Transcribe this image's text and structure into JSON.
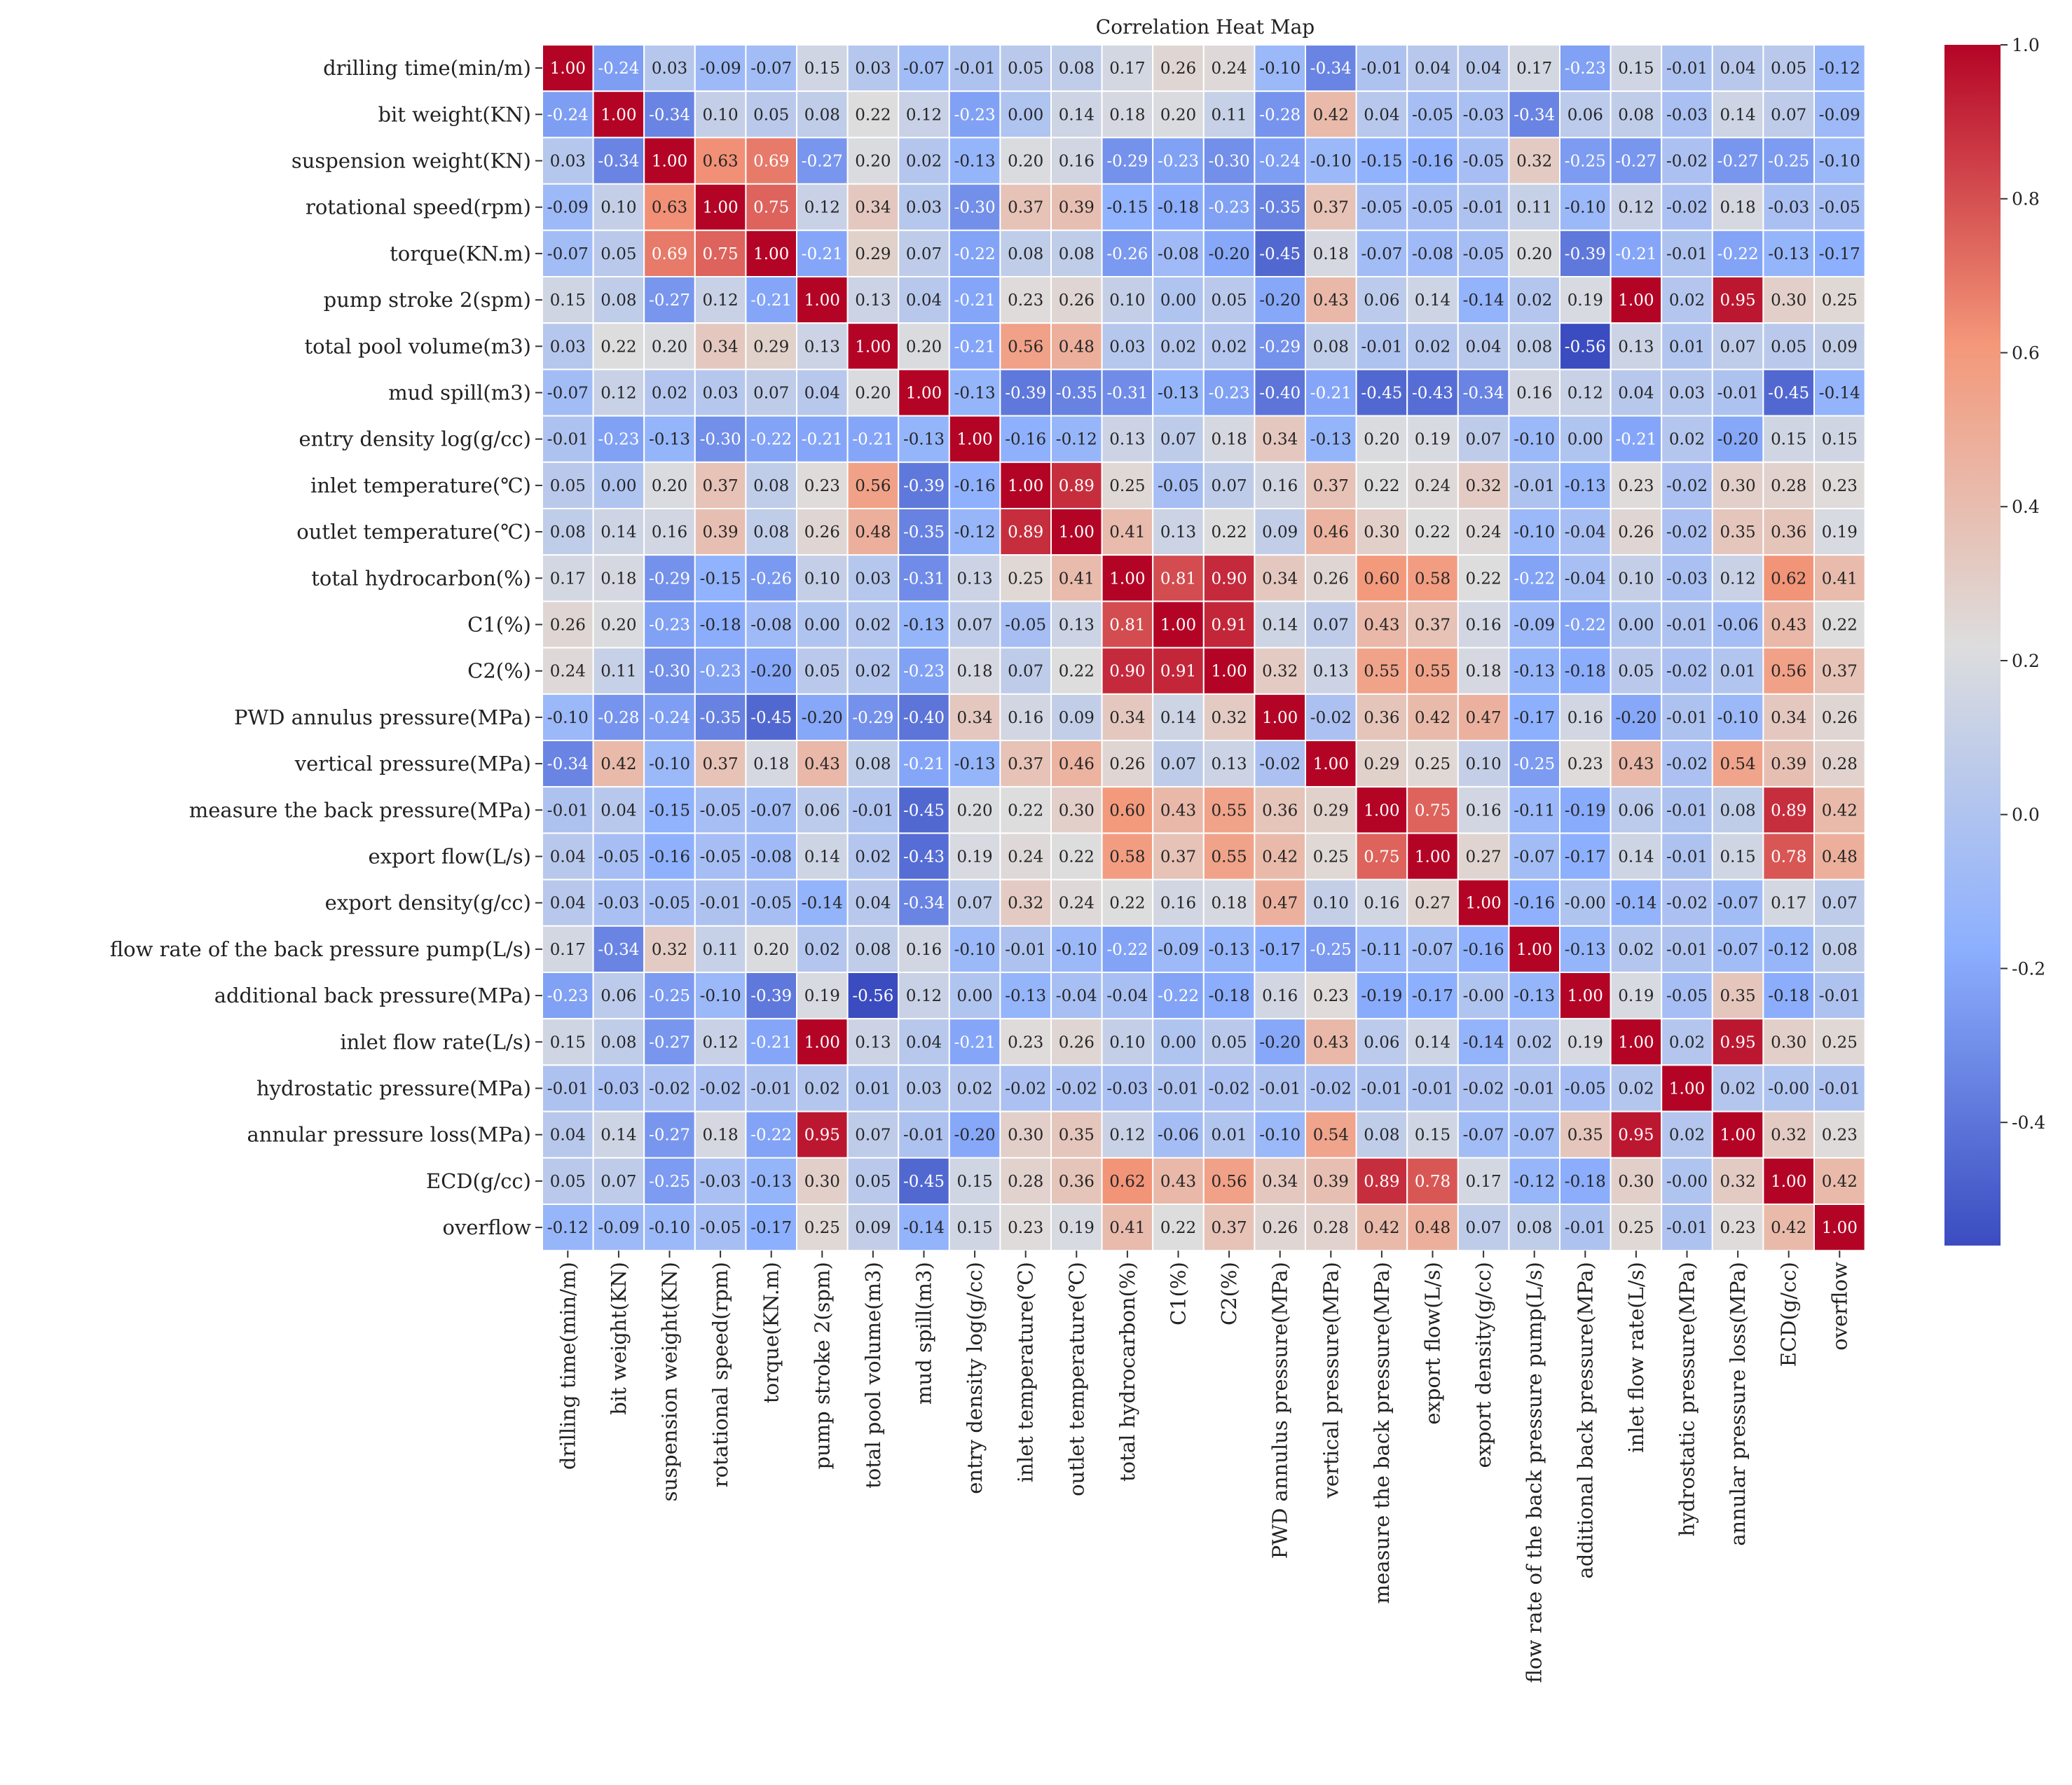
{
  "chart_data": {
    "type": "heatmap",
    "title": "Correlation Heat Map",
    "xlabel": "",
    "ylabel": "",
    "labels": [
      "drilling time(min/m)",
      "bit weight(KN)",
      "suspension weight(KN)",
      "rotational speed(rpm)",
      "torque(KN.m)",
      "pump stroke 2(spm)",
      "total pool volume(m3)",
      "mud spill(m3)",
      "entry density log(g/cc)",
      "inlet temperature(℃)",
      "outlet temperature(℃)",
      "total hydrocarbon(%)",
      "C1(%)",
      "C2(%)",
      "PWD annulus pressure(MPa)",
      "vertical pressure(MPa)",
      "measure the back pressure(MPa)",
      "export flow(L/s)",
      "export density(g/cc)",
      "flow rate of the back pressure pump(L/s)",
      "additional back pressure(MPa)",
      "inlet flow rate(L/s)",
      "hydrostatic pressure(MPa)",
      "annular pressure loss(MPa)",
      "ECD(g/cc)",
      "overflow"
    ],
    "matrix": [
      [
        "1.00",
        "-0.24",
        "0.03",
        "-0.09",
        "-0.07",
        "0.15",
        "0.03",
        "-0.07",
        "-0.01",
        "0.05",
        "0.08",
        "0.17",
        "0.26",
        "0.24",
        "-0.10",
        "-0.34",
        "-0.01",
        "0.04",
        "0.04",
        "0.17",
        "-0.23",
        "0.15",
        "-0.01",
        "0.04",
        "0.05",
        "-0.12"
      ],
      [
        "-0.24",
        "1.00",
        "-0.34",
        "0.10",
        "0.05",
        "0.08",
        "0.22",
        "0.12",
        "-0.23",
        "0.00",
        "0.14",
        "0.18",
        "0.20",
        "0.11",
        "-0.28",
        "0.42",
        "0.04",
        "-0.05",
        "-0.03",
        "-0.34",
        "0.06",
        "0.08",
        "-0.03",
        "0.14",
        "0.07",
        "-0.09"
      ],
      [
        "0.03",
        "-0.34",
        "1.00",
        "0.63",
        "0.69",
        "-0.27",
        "0.20",
        "0.02",
        "-0.13",
        "0.20",
        "0.16",
        "-0.29",
        "-0.23",
        "-0.30",
        "-0.24",
        "-0.10",
        "-0.15",
        "-0.16",
        "-0.05",
        "0.32",
        "-0.25",
        "-0.27",
        "-0.02",
        "-0.27",
        "-0.25",
        "-0.10"
      ],
      [
        "-0.09",
        "0.10",
        "0.63",
        "1.00",
        "0.75",
        "0.12",
        "0.34",
        "0.03",
        "-0.30",
        "0.37",
        "0.39",
        "-0.15",
        "-0.18",
        "-0.23",
        "-0.35",
        "0.37",
        "-0.05",
        "-0.05",
        "-0.01",
        "0.11",
        "-0.10",
        "0.12",
        "-0.02",
        "0.18",
        "-0.03",
        "-0.05"
      ],
      [
        "-0.07",
        "0.05",
        "0.69",
        "0.75",
        "1.00",
        "-0.21",
        "0.29",
        "0.07",
        "-0.22",
        "0.08",
        "0.08",
        "-0.26",
        "-0.08",
        "-0.20",
        "-0.45",
        "0.18",
        "-0.07",
        "-0.08",
        "-0.05",
        "0.20",
        "-0.39",
        "-0.21",
        "-0.01",
        "-0.22",
        "-0.13",
        "-0.17"
      ],
      [
        "0.15",
        "0.08",
        "-0.27",
        "0.12",
        "-0.21",
        "1.00",
        "0.13",
        "0.04",
        "-0.21",
        "0.23",
        "0.26",
        "0.10",
        "0.00",
        "0.05",
        "-0.20",
        "0.43",
        "0.06",
        "0.14",
        "-0.14",
        "0.02",
        "0.19",
        "1.00",
        "0.02",
        "0.95",
        "0.30",
        "0.25"
      ],
      [
        "0.03",
        "0.22",
        "0.20",
        "0.34",
        "0.29",
        "0.13",
        "1.00",
        "0.20",
        "-0.21",
        "0.56",
        "0.48",
        "0.03",
        "0.02",
        "0.02",
        "-0.29",
        "0.08",
        "-0.01",
        "0.02",
        "0.04",
        "0.08",
        "-0.56",
        "0.13",
        "0.01",
        "0.07",
        "0.05",
        "0.09"
      ],
      [
        "-0.07",
        "0.12",
        "0.02",
        "0.03",
        "0.07",
        "0.04",
        "0.20",
        "1.00",
        "-0.13",
        "-0.39",
        "-0.35",
        "-0.31",
        "-0.13",
        "-0.23",
        "-0.40",
        "-0.21",
        "-0.45",
        "-0.43",
        "-0.34",
        "0.16",
        "0.12",
        "0.04",
        "0.03",
        "-0.01",
        "-0.45",
        "-0.14"
      ],
      [
        "-0.01",
        "-0.23",
        "-0.13",
        "-0.30",
        "-0.22",
        "-0.21",
        "-0.21",
        "-0.13",
        "1.00",
        "-0.16",
        "-0.12",
        "0.13",
        "0.07",
        "0.18",
        "0.34",
        "-0.13",
        "0.20",
        "0.19",
        "0.07",
        "-0.10",
        "0.00",
        "-0.21",
        "0.02",
        "-0.20",
        "0.15",
        "0.15"
      ],
      [
        "0.05",
        "0.00",
        "0.20",
        "0.37",
        "0.08",
        "0.23",
        "0.56",
        "-0.39",
        "-0.16",
        "1.00",
        "0.89",
        "0.25",
        "-0.05",
        "0.07",
        "0.16",
        "0.37",
        "0.22",
        "0.24",
        "0.32",
        "-0.01",
        "-0.13",
        "0.23",
        "-0.02",
        "0.30",
        "0.28",
        "0.23"
      ],
      [
        "0.08",
        "0.14",
        "0.16",
        "0.39",
        "0.08",
        "0.26",
        "0.48",
        "-0.35",
        "-0.12",
        "0.89",
        "1.00",
        "0.41",
        "0.13",
        "0.22",
        "0.09",
        "0.46",
        "0.30",
        "0.22",
        "0.24",
        "-0.10",
        "-0.04",
        "0.26",
        "-0.02",
        "0.35",
        "0.36",
        "0.19"
      ],
      [
        "0.17",
        "0.18",
        "-0.29",
        "-0.15",
        "-0.26",
        "0.10",
        "0.03",
        "-0.31",
        "0.13",
        "0.25",
        "0.41",
        "1.00",
        "0.81",
        "0.90",
        "0.34",
        "0.26",
        "0.60",
        "0.58",
        "0.22",
        "-0.22",
        "-0.04",
        "0.10",
        "-0.03",
        "0.12",
        "0.62",
        "0.41"
      ],
      [
        "0.26",
        "0.20",
        "-0.23",
        "-0.18",
        "-0.08",
        "0.00",
        "0.02",
        "-0.13",
        "0.07",
        "-0.05",
        "0.13",
        "0.81",
        "1.00",
        "0.91",
        "0.14",
        "0.07",
        "0.43",
        "0.37",
        "0.16",
        "-0.09",
        "-0.22",
        "0.00",
        "-0.01",
        "-0.06",
        "0.43",
        "0.22"
      ],
      [
        "0.24",
        "0.11",
        "-0.30",
        "-0.23",
        "-0.20",
        "0.05",
        "0.02",
        "-0.23",
        "0.18",
        "0.07",
        "0.22",
        "0.90",
        "0.91",
        "1.00",
        "0.32",
        "0.13",
        "0.55",
        "0.55",
        "0.18",
        "-0.13",
        "-0.18",
        "0.05",
        "-0.02",
        "0.01",
        "0.56",
        "0.37"
      ],
      [
        "-0.10",
        "-0.28",
        "-0.24",
        "-0.35",
        "-0.45",
        "-0.20",
        "-0.29",
        "-0.40",
        "0.34",
        "0.16",
        "0.09",
        "0.34",
        "0.14",
        "0.32",
        "1.00",
        "-0.02",
        "0.36",
        "0.42",
        "0.47",
        "-0.17",
        "0.16",
        "-0.20",
        "-0.01",
        "-0.10",
        "0.34",
        "0.26"
      ],
      [
        "-0.34",
        "0.42",
        "-0.10",
        "0.37",
        "0.18",
        "0.43",
        "0.08",
        "-0.21",
        "-0.13",
        "0.37",
        "0.46",
        "0.26",
        "0.07",
        "0.13",
        "-0.02",
        "1.00",
        "0.29",
        "0.25",
        "0.10",
        "-0.25",
        "0.23",
        "0.43",
        "-0.02",
        "0.54",
        "0.39",
        "0.28"
      ],
      [
        "-0.01",
        "0.04",
        "-0.15",
        "-0.05",
        "-0.07",
        "0.06",
        "-0.01",
        "-0.45",
        "0.20",
        "0.22",
        "0.30",
        "0.60",
        "0.43",
        "0.55",
        "0.36",
        "0.29",
        "1.00",
        "0.75",
        "0.16",
        "-0.11",
        "-0.19",
        "0.06",
        "-0.01",
        "0.08",
        "0.89",
        "0.42"
      ],
      [
        "0.04",
        "-0.05",
        "-0.16",
        "-0.05",
        "-0.08",
        "0.14",
        "0.02",
        "-0.43",
        "0.19",
        "0.24",
        "0.22",
        "0.58",
        "0.37",
        "0.55",
        "0.42",
        "0.25",
        "0.75",
        "1.00",
        "0.27",
        "-0.07",
        "-0.17",
        "0.14",
        "-0.01",
        "0.15",
        "0.78",
        "0.48"
      ],
      [
        "0.04",
        "-0.03",
        "-0.05",
        "-0.01",
        "-0.05",
        "-0.14",
        "0.04",
        "-0.34",
        "0.07",
        "0.32",
        "0.24",
        "0.22",
        "0.16",
        "0.18",
        "0.47",
        "0.10",
        "0.16",
        "0.27",
        "1.00",
        "-0.16",
        "-0.00",
        "-0.14",
        "-0.02",
        "-0.07",
        "0.17",
        "0.07"
      ],
      [
        "0.17",
        "-0.34",
        "0.32",
        "0.11",
        "0.20",
        "0.02",
        "0.08",
        "0.16",
        "-0.10",
        "-0.01",
        "-0.10",
        "-0.22",
        "-0.09",
        "-0.13",
        "-0.17",
        "-0.25",
        "-0.11",
        "-0.07",
        "-0.16",
        "1.00",
        "-0.13",
        "0.02",
        "-0.01",
        "-0.07",
        "-0.12",
        "0.08"
      ],
      [
        "-0.23",
        "0.06",
        "-0.25",
        "-0.10",
        "-0.39",
        "0.19",
        "-0.56",
        "0.12",
        "0.00",
        "-0.13",
        "-0.04",
        "-0.04",
        "-0.22",
        "-0.18",
        "0.16",
        "0.23",
        "-0.19",
        "-0.17",
        "-0.00",
        "-0.13",
        "1.00",
        "0.19",
        "-0.05",
        "0.35",
        "-0.18",
        "-0.01"
      ],
      [
        "0.15",
        "0.08",
        "-0.27",
        "0.12",
        "-0.21",
        "1.00",
        "0.13",
        "0.04",
        "-0.21",
        "0.23",
        "0.26",
        "0.10",
        "0.00",
        "0.05",
        "-0.20",
        "0.43",
        "0.06",
        "0.14",
        "-0.14",
        "0.02",
        "0.19",
        "1.00",
        "0.02",
        "0.95",
        "0.30",
        "0.25"
      ],
      [
        "-0.01",
        "-0.03",
        "-0.02",
        "-0.02",
        "-0.01",
        "0.02",
        "0.01",
        "0.03",
        "0.02",
        "-0.02",
        "-0.02",
        "-0.03",
        "-0.01",
        "-0.02",
        "-0.01",
        "-0.02",
        "-0.01",
        "-0.01",
        "-0.02",
        "-0.01",
        "-0.05",
        "0.02",
        "1.00",
        "0.02",
        "-0.00",
        "-0.01"
      ],
      [
        "0.04",
        "0.14",
        "-0.27",
        "0.18",
        "-0.22",
        "0.95",
        "0.07",
        "-0.01",
        "-0.20",
        "0.30",
        "0.35",
        "0.12",
        "-0.06",
        "0.01",
        "-0.10",
        "0.54",
        "0.08",
        "0.15",
        "-0.07",
        "-0.07",
        "0.35",
        "0.95",
        "0.02",
        "1.00",
        "0.32",
        "0.23"
      ],
      [
        "0.05",
        "0.07",
        "-0.25",
        "-0.03",
        "-0.13",
        "0.30",
        "0.05",
        "-0.45",
        "0.15",
        "0.28",
        "0.36",
        "0.62",
        "0.43",
        "0.56",
        "0.34",
        "0.39",
        "0.89",
        "0.78",
        "0.17",
        "-0.12",
        "-0.18",
        "0.30",
        "-0.00",
        "0.32",
        "1.00",
        "0.42"
      ],
      [
        "-0.12",
        "-0.09",
        "-0.10",
        "-0.05",
        "-0.17",
        "0.25",
        "0.09",
        "-0.14",
        "0.15",
        "0.23",
        "0.19",
        "0.41",
        "0.22",
        "0.37",
        "0.26",
        "0.28",
        "0.42",
        "0.48",
        "0.07",
        "0.08",
        "-0.01",
        "0.25",
        "-0.01",
        "0.23",
        "0.42",
        "1.00"
      ]
    ],
    "vmin": -0.56,
    "vmax": 1.0,
    "colormap": "coolwarm",
    "colorbar_ticks": [
      {
        "value": 1.0,
        "label": "1.0"
      },
      {
        "value": 0.8,
        "label": "0.8"
      },
      {
        "value": 0.6,
        "label": "0.6"
      },
      {
        "value": 0.4,
        "label": "0.4"
      },
      {
        "value": 0.2,
        "label": "0.2"
      },
      {
        "value": 0.0,
        "label": "0.0"
      },
      {
        "value": -0.2,
        "label": "-0.2"
      },
      {
        "value": -0.4,
        "label": "-0.4"
      }
    ],
    "colors": {
      "low": "#3b4cc0",
      "mid": "#dddddd",
      "high": "#b40426",
      "cell_gap": "#ffffff"
    }
  }
}
